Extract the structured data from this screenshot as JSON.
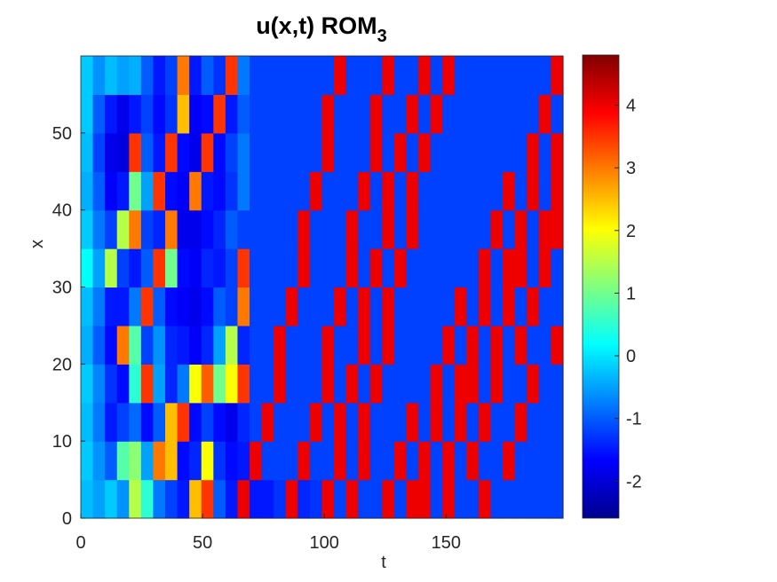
{
  "chart_data": {
    "type": "heatmap",
    "title": "u(x,t) ROM",
    "title_subscript": "3",
    "x_label": "t",
    "y_label": "x",
    "xlim": [
      0,
      198
    ],
    "ylim": [
      0,
      60
    ],
    "xticks": [
      0,
      50,
      100,
      150
    ],
    "yticks": [
      0,
      10,
      20,
      30,
      40,
      50
    ],
    "colormap": "jet",
    "clim": [
      -2.59,
      4.8
    ],
    "cticks": [
      -2,
      -1,
      0,
      1,
      2,
      3,
      4
    ],
    "z": [
      [
        -0.3,
        -0.5,
        -0.2,
        -0.6,
        1.5,
        0.5,
        -0.8,
        -1.2,
        -1.5,
        2.5,
        3.5,
        -1.0,
        -1.5,
        4,
        -1.5,
        -1.5,
        -1.3,
        4,
        -1.4,
        -1.3,
        4,
        -1.2,
        4,
        -1.2,
        -1.2,
        4,
        -1.2,
        4,
        4,
        -1.2,
        4,
        -1.2,
        -1.2,
        4,
        -1.2,
        -1.2,
        -1.2,
        -1.2,
        -1.2,
        -1.2
      ],
      [
        -0.2,
        -0.6,
        -1.0,
        0.8,
        1.2,
        -0.5,
        3.0,
        2.5,
        -1.6,
        -1.4,
        2.0,
        -1.3,
        -1.6,
        -1.5,
        4,
        -1.2,
        -1.2,
        -1.2,
        4,
        -1.2,
        -1.2,
        4,
        -1.2,
        4,
        -1.2,
        -1.2,
        4,
        -1.2,
        4,
        -1.2,
        4,
        -1.2,
        4,
        -1.2,
        -1.2,
        4,
        -1.2,
        -1.2,
        -1.2,
        -1.2
      ],
      [
        -0.3,
        -0.8,
        -1.5,
        -1.2,
        -0.9,
        -1.6,
        -1.0,
        2.5,
        3.5,
        -1.6,
        -1.2,
        -1.6,
        -1.8,
        -1.4,
        -1.2,
        4,
        -1.2,
        -1.2,
        -1.2,
        4,
        -1.2,
        4,
        -1.2,
        4,
        -1.2,
        -1.2,
        -1.2,
        4,
        -1.2,
        4,
        -1.2,
        4,
        -1.2,
        4,
        -1.2,
        -1.2,
        4,
        -1.2,
        -1.2,
        -1.2
      ],
      [
        -0.2,
        -0.7,
        -1.3,
        -1.6,
        0.5,
        3.5,
        -0.5,
        -1.4,
        -0.8,
        2.0,
        3.2,
        1.0,
        2.0,
        3.5,
        -1.2,
        -1.2,
        4,
        -1.2,
        -1.2,
        -1.2,
        4,
        -1.2,
        4,
        -1.2,
        4,
        -1.2,
        -1.2,
        -1.2,
        -1.2,
        4,
        -1.2,
        4,
        4,
        -1.2,
        4,
        -1.2,
        -1.2,
        4,
        -1.2,
        -1.2
      ],
      [
        -0.4,
        -1.0,
        -1.6,
        3.0,
        0.8,
        -1.2,
        -0.6,
        -1.4,
        -1.5,
        -1.7,
        -1.4,
        -0.5,
        1.5,
        -1.4,
        -1.2,
        -1.2,
        4,
        -1.2,
        -1.2,
        -1.2,
        4,
        -1.2,
        -1.2,
        4,
        -1.2,
        4,
        -1.2,
        -1.2,
        -1.2,
        -1.2,
        4,
        -1.2,
        4,
        -1.2,
        4,
        -1.2,
        4,
        -1.2,
        -1.2,
        4
      ],
      [
        -0.3,
        -0.8,
        -1.5,
        -1.5,
        -0.8,
        3.5,
        -1.0,
        -1.6,
        -1.7,
        -1.8,
        -1.6,
        -1.0,
        -1.2,
        3.0,
        -1.2,
        -1.2,
        -1.2,
        4,
        -1.2,
        -1.2,
        -1.2,
        4,
        -1.2,
        4,
        -1.2,
        4,
        -1.2,
        -1.2,
        -1.2,
        -1.2,
        -1.2,
        4,
        -1.2,
        4,
        -1.2,
        4,
        -1.2,
        4,
        -1.2,
        -1.2
      ],
      [
        0.2,
        -0.5,
        1.5,
        -1.2,
        -1.5,
        -1.0,
        3.5,
        1.0,
        -1.6,
        -1.7,
        -1.4,
        -1.5,
        -1.2,
        3.5,
        -1.2,
        -1.2,
        -1.2,
        -1.2,
        4,
        -1.2,
        -1.2,
        -1.2,
        4,
        -1.2,
        4,
        -1.2,
        4,
        -1.2,
        -1.2,
        -1.2,
        -1.2,
        -1.2,
        -1.2,
        4,
        -1.2,
        4,
        4,
        -1.2,
        4,
        -1.2
      ],
      [
        -0.2,
        -0.8,
        -1.2,
        1.5,
        3.0,
        -1.2,
        -1.4,
        3.0,
        -1.8,
        -1.8,
        -1.6,
        -1.4,
        -1.0,
        -1.2,
        -1.2,
        -1.2,
        -1.2,
        -1.2,
        4,
        -1.2,
        -1.2,
        -1.2,
        4,
        -1.2,
        -1.2,
        4,
        -1.2,
        4,
        -1.2,
        -1.2,
        -1.2,
        -1.2,
        -1.2,
        -1.2,
        4,
        -1.2,
        4,
        -1.2,
        4,
        4
      ],
      [
        -0.4,
        -1.0,
        -1.7,
        -1.5,
        1.0,
        -0.5,
        3.5,
        -1.6,
        -1.7,
        3.0,
        -1.5,
        -1.6,
        -1.3,
        -0.8,
        -1.2,
        -1.2,
        -1.2,
        -1.2,
        -1.2,
        4,
        -1.2,
        -1.2,
        -1.2,
        4,
        -1.2,
        4,
        -1.2,
        4,
        -1.2,
        -1.2,
        -1.2,
        -1.2,
        -1.2,
        -1.2,
        -1.2,
        4,
        -1.2,
        4,
        -1.2,
        4
      ],
      [
        -0.3,
        -1.2,
        -1.8,
        -1.9,
        3.5,
        -1.0,
        -1.5,
        3.5,
        -1.6,
        -1.8,
        3.5,
        -1.6,
        -1.2,
        -0.8,
        -1.2,
        -1.2,
        -1.2,
        -1.2,
        -1.2,
        -1.2,
        4,
        -1.2,
        -1.2,
        -1.2,
        4,
        -1.2,
        4,
        -1.2,
        4,
        -1.2,
        -1.2,
        -1.2,
        -1.2,
        -1.2,
        -1.2,
        -1.2,
        -1.2,
        4,
        -1.2,
        4
      ],
      [
        -0.2,
        -1.0,
        -1.5,
        -1.8,
        -1.5,
        -1.2,
        -1.6,
        -1.3,
        2.5,
        -1.7,
        -1.6,
        3.5,
        -1.5,
        -1.0,
        -1.2,
        -1.2,
        -1.2,
        -1.2,
        -1.2,
        -1.2,
        4,
        -1.2,
        -1.2,
        -1.2,
        4,
        -1.2,
        -1.2,
        4,
        -1.2,
        4,
        -1.2,
        -1.2,
        -1.2,
        -1.2,
        -1.2,
        -1.2,
        -1.2,
        -1.2,
        4,
        -1.2
      ],
      [
        -0.2,
        -0.6,
        -0.3,
        -0.5,
        -0.4,
        -1.0,
        -1.5,
        -1.2,
        3.0,
        -1.5,
        -1.0,
        -1.3,
        3.5,
        -0.8,
        -1.2,
        -1.2,
        -1.2,
        -1.2,
        -1.2,
        -1.2,
        -1.2,
        4,
        -1.2,
        -1.2,
        -1.2,
        4,
        -1.2,
        -1.2,
        4,
        -1.2,
        4,
        -1.2,
        -1.2,
        -1.2,
        -1.2,
        -1.2,
        -1.2,
        -1.2,
        -1.2,
        4
      ]
    ]
  }
}
